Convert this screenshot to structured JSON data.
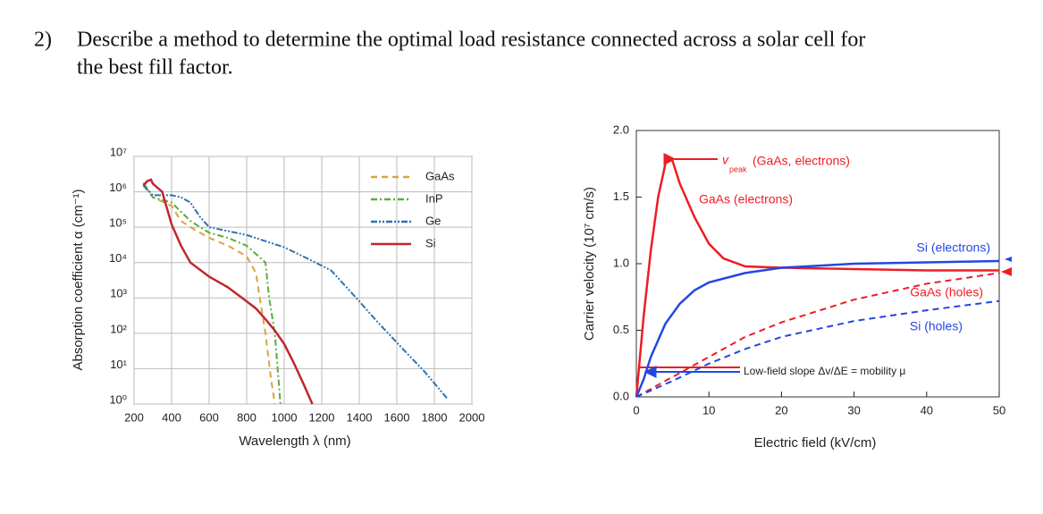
{
  "question": {
    "number": "2)",
    "lines": [
      "Describe a method to determine the optimal load resistance connected across a solar cell for",
      "the best fill factor."
    ]
  },
  "chart_data": [
    {
      "type": "line",
      "xlabel": "Wavelength λ (nm)",
      "ylabel": "Absorption coefficient α (cm⁻¹)",
      "log_y": true,
      "grid": true,
      "legend": "top-right",
      "xlim": [
        200,
        2000
      ],
      "xticks": [
        200,
        400,
        600,
        800,
        1000,
        1200,
        1400,
        1600,
        1800,
        2000
      ],
      "ylim": [
        1,
        10000000
      ],
      "yticks": [
        {
          "value": 1,
          "label": "10⁰"
        },
        {
          "value": 10,
          "label": "10¹"
        },
        {
          "value": 100,
          "label": "10²"
        },
        {
          "value": 1000,
          "label": "10³"
        },
        {
          "value": 10000,
          "label": "10⁴"
        },
        {
          "value": 100000,
          "label": "10⁵"
        },
        {
          "value": 1000000,
          "label": "10⁶"
        },
        {
          "value": 10000000,
          "label": "10⁷"
        }
      ],
      "series": [
        {
          "name": "GaAs",
          "color": "#d9a441",
          "style": "dashed",
          "x": [
            250,
            300,
            400,
            450,
            500,
            600,
            700,
            800,
            850,
            870,
            900,
            930,
            950
          ],
          "values": [
            1500000,
            700000,
            400000,
            150000,
            100000,
            50000,
            30000,
            15000,
            5000,
            1000,
            100,
            5,
            1
          ]
        },
        {
          "name": "InP",
          "color": "#5aae3c",
          "style": "dashdot",
          "x": [
            250,
            300,
            400,
            500,
            600,
            700,
            800,
            900,
            920,
            950,
            980
          ],
          "values": [
            1800000,
            700000,
            500000,
            150000,
            70000,
            50000,
            30000,
            10000,
            1000,
            100,
            1
          ]
        },
        {
          "name": "Ge",
          "color": "#2f72b0",
          "style": "dashdotdot",
          "x": [
            250,
            300,
            400,
            450,
            500,
            550,
            600,
            800,
            1000,
            1100,
            1250,
            1400,
            1500,
            1630,
            1750,
            1870
          ],
          "values": [
            1500000,
            800000,
            800000,
            700000,
            500000,
            200000,
            100000,
            60000,
            27000,
            15000,
            6000,
            800,
            200,
            37,
            8,
            1.4
          ]
        },
        {
          "name": "Si",
          "color": "#c0272d",
          "style": "solid",
          "x": [
            250,
            270,
            290,
            300,
            350,
            400,
            450,
            500,
            600,
            700,
            800,
            850,
            900,
            950,
            1000,
            1050,
            1100,
            1150
          ],
          "values": [
            1500000,
            2000000,
            2200000,
            1700000,
            1000000,
            120000,
            30000,
            10000,
            4000,
            2000,
            800,
            500,
            250,
            120,
            50,
            15,
            4,
            1
          ]
        }
      ]
    },
    {
      "type": "line",
      "xlabel": "Electric field (kV/cm)",
      "ylabel": "Carrier velocity (10⁷ cm/s)",
      "grid": false,
      "xlim": [
        0,
        50
      ],
      "xticks": [
        0,
        10,
        20,
        30,
        40,
        50
      ],
      "ylim": [
        0,
        2
      ],
      "yticks": [
        {
          "value": 0,
          "label": "0.0"
        },
        0.5,
        {
          "value": 1,
          "label": "1.0"
        },
        1.5,
        {
          "value": 2,
          "label": "2.0"
        }
      ],
      "annotations": [
        "v",
        "peak",
        "(GaAs, electrons)",
        "Low-field slope Δv/ΔE = mobility μ"
      ],
      "series": [
        {
          "name": "GaAs (electrons)",
          "color": "#ee1c24",
          "style": "solid",
          "x": [
            0,
            1,
            2,
            3,
            4,
            4.5,
            5,
            6,
            8,
            10,
            12,
            15,
            20,
            30,
            40,
            50
          ],
          "values": [
            0,
            0.6,
            1.1,
            1.5,
            1.75,
            1.8,
            1.77,
            1.6,
            1.35,
            1.15,
            1.04,
            0.98,
            0.97,
            0.96,
            0.95,
            0.95
          ]
        },
        {
          "name": "Si (electrons)",
          "color": "#2447e0",
          "style": "solid",
          "x": [
            0,
            1,
            2,
            4,
            6,
            8,
            10,
            15,
            20,
            30,
            40,
            50
          ],
          "values": [
            0,
            0.13,
            0.3,
            0.55,
            0.7,
            0.8,
            0.86,
            0.93,
            0.97,
            1.0,
            1.01,
            1.02
          ]
        },
        {
          "name": "GaAs (holes)",
          "color": "#ee1c24",
          "style": "dashed",
          "x": [
            0,
            5,
            10,
            15,
            20,
            30,
            40,
            50
          ],
          "values": [
            0,
            0.15,
            0.3,
            0.45,
            0.56,
            0.73,
            0.85,
            0.93
          ]
        },
        {
          "name": "Si (holes)",
          "color": "#2447e0",
          "style": "dashed",
          "x": [
            0,
            5,
            10,
            15,
            20,
            30,
            40,
            50
          ],
          "values": [
            0,
            0.12,
            0.25,
            0.36,
            0.45,
            0.57,
            0.65,
            0.72
          ]
        }
      ]
    }
  ]
}
